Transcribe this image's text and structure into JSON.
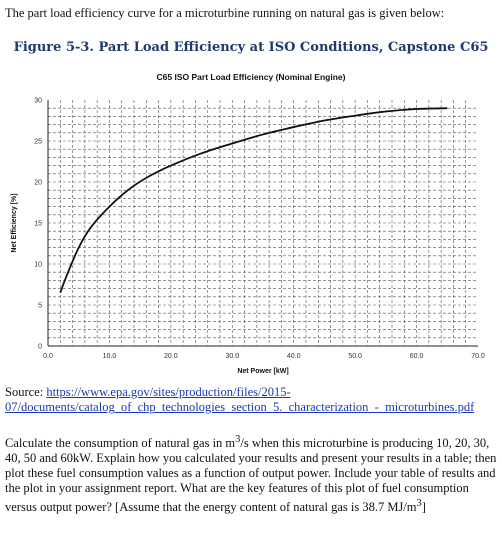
{
  "intro_text": "The part load efficiency curve for a microturbine running on natural gas is given below:",
  "figure_title": "Figure 5-3. Part Load Efficiency at ISO Conditions, Capstone C65",
  "source": {
    "label": "Source: ",
    "link_line1": "https://www.epa.gov/sites/production/files/2015-",
    "link_line2": "07/documents/catalog_of_chp_technologies_section_5._characterization_-_microturbines.pdf"
  },
  "question": {
    "part1": "Calculate the consumption of natural gas in m",
    "sup1": "3",
    "part2": "/s when this microturbine is producing 10, 20, 30, 40, 50 and 60kW.  Explain how you calculated your results and present your results in a table; then plot these fuel consumption values as a function of output power.  Include your table of results and the plot in your assignment report.  What are the key features of this plot of fuel consumption versus output power? [Assume that the energy content of natural gas is 38.7 MJ/m",
    "sup2": "3",
    "part3": "]"
  },
  "chart_data": {
    "type": "line",
    "title": "C65 ISO Part Load Efficiency (Nominal Engine)",
    "xlabel": "Net Power [kW]",
    "ylabel": "Net Efficiency [%]",
    "xlim": [
      0,
      70
    ],
    "ylim": [
      0,
      30
    ],
    "x_ticks": [
      "0.0",
      "10.0",
      "20.0",
      "30.0",
      "40.0",
      "50.0",
      "60.0",
      "70.0"
    ],
    "y_ticks": [
      "0",
      "5",
      "10",
      "15",
      "20",
      "25",
      "30"
    ],
    "grid": true,
    "grid_style": "dashed",
    "legend": "none",
    "line_color": "#111111",
    "series": [
      {
        "x": [
          2,
          3,
          5,
          7,
          10,
          13,
          16,
          20,
          25,
          30,
          35,
          40,
          45,
          50,
          55,
          60,
          65
        ],
        "y": [
          6.5,
          8.5,
          12.0,
          14.5,
          17.0,
          19.0,
          20.5,
          22.0,
          23.5,
          24.7,
          25.8,
          26.7,
          27.5,
          28.1,
          28.6,
          28.9,
          29.0
        ]
      }
    ]
  }
}
